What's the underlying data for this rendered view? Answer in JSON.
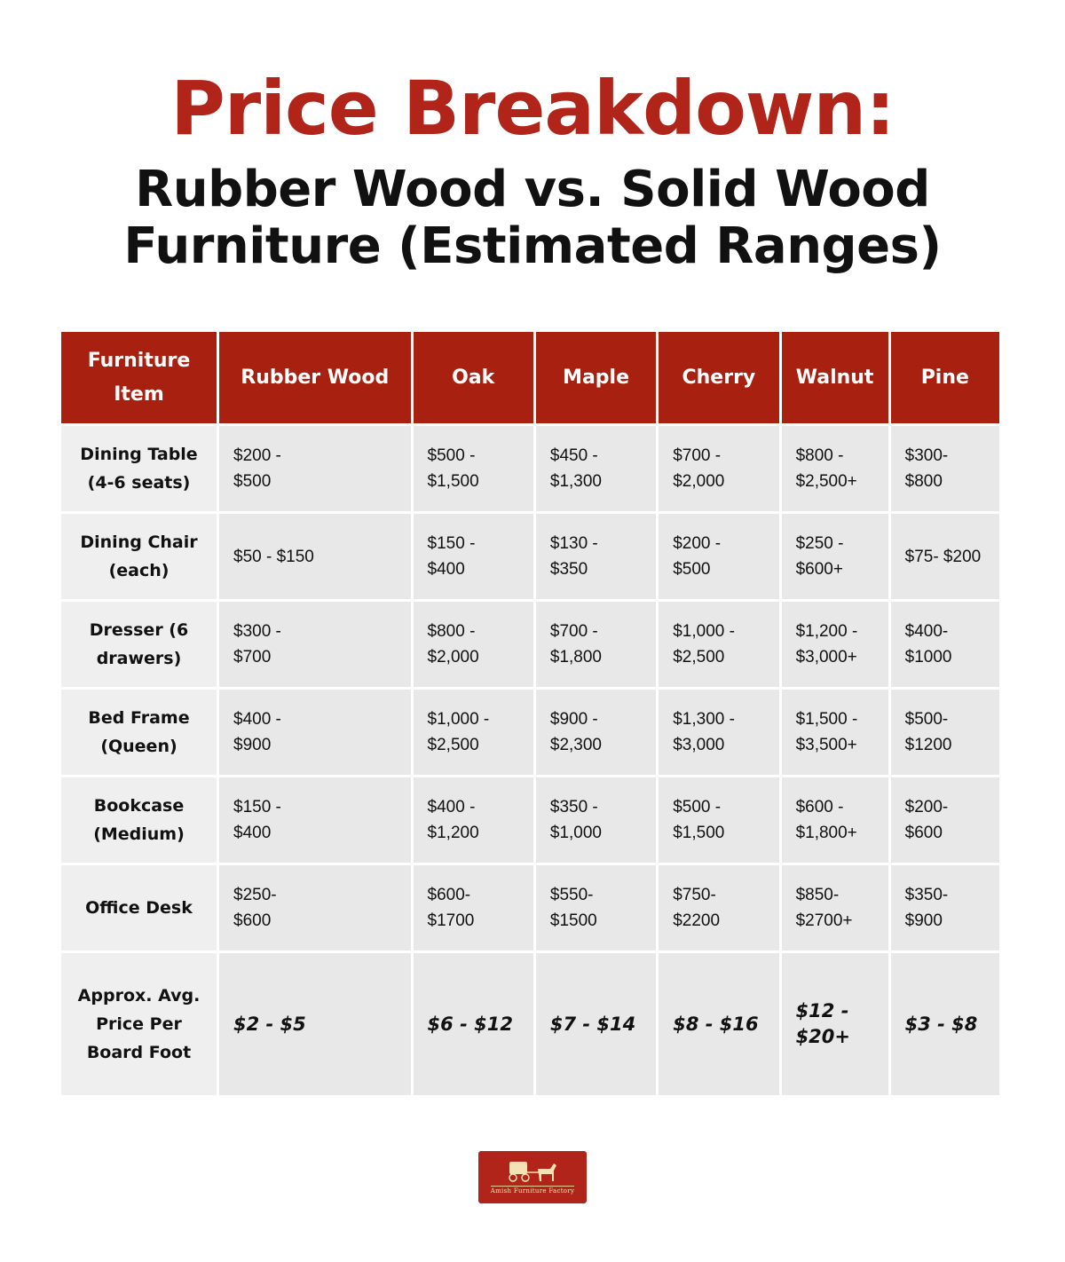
{
  "title": "Price Breakdown:",
  "subtitle": "Rubber Wood vs. Solid Wood Furniture (Estimated Ranges)",
  "colors": {
    "accent": "#b0241a",
    "header_bg": "#a8200f",
    "cell_bg": "#e8e8e8"
  },
  "table": {
    "headers": [
      "Furniture Item",
      "Rubber Wood",
      "Oak",
      "Maple",
      "Cherry",
      "Walnut",
      "Pine"
    ],
    "rows": [
      {
        "item": "Dining Table (4-6 seats)",
        "values": [
          "$200 -\n$500",
          "$500 -\n$1,500",
          "$450 -\n$1,300",
          "$700 -\n$2,000",
          "$800 -\n$2,500+",
          "$300-\n$800"
        ]
      },
      {
        "item": "Dining Chair (each)",
        "values": [
          "$50 - $150",
          "$150 -\n$400",
          "$130 -\n$350",
          "$200 -\n$500",
          "$250 -\n$600+",
          "$75- $200"
        ]
      },
      {
        "item": "Dresser (6 drawers)",
        "values": [
          "$300 -\n$700",
          "$800 -\n$2,000",
          "$700 -\n$1,800",
          "$1,000 -\n$2,500",
          "$1,200 -\n$3,000+",
          "$400-\n$1000"
        ]
      },
      {
        "item": "Bed Frame (Queen)",
        "values": [
          "$400 -\n$900",
          "$1,000 -\n$2,500",
          "$900 -\n$2,300",
          "$1,300 -\n$3,000",
          "$1,500 -\n$3,500+",
          "$500-\n$1200"
        ]
      },
      {
        "item": "Bookcase (Medium)",
        "values": [
          "$150 -\n$400",
          "$400 -\n$1,200",
          "$350 -\n$1,000",
          "$500 -\n$1,500",
          "$600 -\n$1,800+",
          "$200-\n$600"
        ]
      },
      {
        "item": "Office Desk",
        "values": [
          "$250-\n$600",
          "$600-\n$1700",
          "$550-\n$1500",
          "$750-\n$2200",
          "$850-\n$2700+",
          "$350-\n$900"
        ]
      },
      {
        "item": "Approx. Avg. Price Per Board Foot",
        "values": [
          "$2 - $5",
          "$6 - $12",
          "$7 - $14",
          "$8 - $16",
          "$12 -\n$20+",
          "$3 - $8"
        ]
      }
    ]
  },
  "logo": {
    "text": "Amish Furniture Factory",
    "icon": "horse-and-buggy-icon"
  }
}
